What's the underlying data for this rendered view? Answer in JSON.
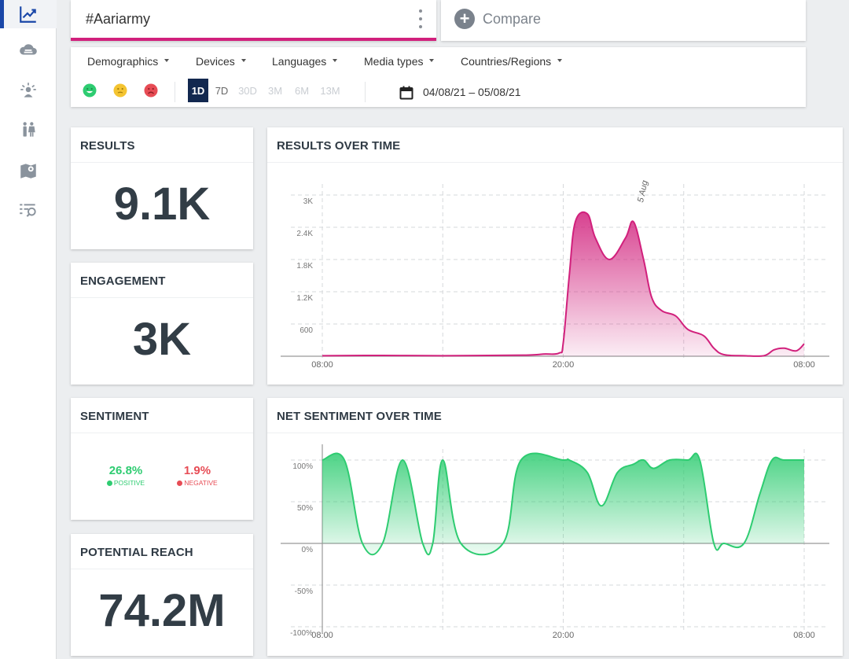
{
  "sidebar": {
    "items": [
      {
        "icon": "trend-chart-icon",
        "active": true
      },
      {
        "icon": "cloud-icon",
        "active": false
      },
      {
        "icon": "influencer-icon",
        "active": false
      },
      {
        "icon": "demographics-icon",
        "active": false
      },
      {
        "icon": "map-icon",
        "active": false
      },
      {
        "icon": "search-list-icon",
        "active": false
      }
    ]
  },
  "search": {
    "query": "#Aariarmy"
  },
  "compare": {
    "label": "Compare"
  },
  "filters": {
    "dropdowns": [
      "Demographics",
      "Devices",
      "Languages",
      "Media types",
      "Countries/Regions"
    ],
    "periods": [
      "1D",
      "7D",
      "30D",
      "3M",
      "6M",
      "13M"
    ],
    "active_period": "1D",
    "date_range": "04/08/21 – 05/08/21"
  },
  "colors": {
    "accent": "#d1207c",
    "positive": "#2ecc71",
    "negative": "#e74c55",
    "neutral": "#f4c431",
    "nav_active": "#1a47a8"
  },
  "results": {
    "title": "RESULTS",
    "value": "9.1K"
  },
  "engagement": {
    "title": "ENGAGEMENT",
    "value": "3K"
  },
  "sentiment": {
    "title": "SENTIMENT",
    "positive_value": "26.8%",
    "positive_label": "POSITIVE",
    "negative_value": "1.9%",
    "negative_label": "NEGATIVE"
  },
  "reach": {
    "title": "POTENTIAL REACH",
    "value": "74.2M"
  },
  "results_chart": {
    "title": "RESULTS OVER TIME"
  },
  "sentiment_chart": {
    "title": "NET SENTIMENT OVER TIME"
  },
  "chart_data": [
    {
      "type": "area",
      "title": "RESULTS OVER TIME",
      "ylim": [
        0,
        3000
      ],
      "yticks": [
        600,
        1200,
        1800,
        2400,
        3000
      ],
      "ytick_labels": [
        "600",
        "1.2K",
        "1.8K",
        "2.4K",
        "3K"
      ],
      "xticks": [
        "08:00",
        "20:00",
        "08:00"
      ],
      "xtick_positions": [
        0,
        12,
        24
      ],
      "annotation": {
        "label": "5 Aug",
        "x": 15.5
      },
      "x": [
        0,
        3,
        6,
        10,
        11,
        11.8,
        12,
        12.3,
        12.6,
        13.2,
        13.6,
        14.3,
        15.1,
        15.5,
        16.0,
        16.4,
        16.9,
        17.6,
        18.2,
        19.0,
        19.5,
        20.0,
        21.0,
        22.0,
        22.5,
        23.0,
        23.6,
        24
      ],
      "values": [
        10,
        15,
        10,
        20,
        40,
        60,
        250,
        1500,
        2500,
        2650,
        2200,
        1800,
        2200,
        2500,
        1800,
        1100,
        850,
        750,
        500,
        380,
        150,
        30,
        10,
        10,
        120,
        150,
        100,
        230
      ],
      "series_color": "#d1207c"
    },
    {
      "type": "area",
      "title": "NET SENTIMENT OVER TIME",
      "ylim": [
        -100,
        100
      ],
      "yticks": [
        -100,
        -50,
        0,
        50,
        100
      ],
      "ytick_labels": [
        "-100%",
        "-50%",
        "0%",
        "50%",
        "100%"
      ],
      "xticks": [
        "08:00",
        "20:00",
        "08:00"
      ],
      "xtick_positions": [
        0,
        12,
        24
      ],
      "x": [
        0,
        1.1,
        2.0,
        3.0,
        4.0,
        5.0,
        5.5,
        6.0,
        6.9,
        9.0,
        9.9,
        12.0,
        12.3,
        13.2,
        13.9,
        14.7,
        15.5,
        16.0,
        16.5,
        17.3,
        18.2,
        18.8,
        19.5,
        20.0,
        21.0,
        21.8,
        22.4,
        23.0,
        24
      ],
      "values": [
        100,
        100,
        0,
        0,
        100,
        0,
        0,
        100,
        0,
        0,
        100,
        100,
        100,
        85,
        45,
        85,
        95,
        100,
        90,
        100,
        100,
        100,
        0,
        0,
        0,
        60,
        100,
        100,
        100
      ],
      "series_color": "#2ecc71"
    }
  ]
}
